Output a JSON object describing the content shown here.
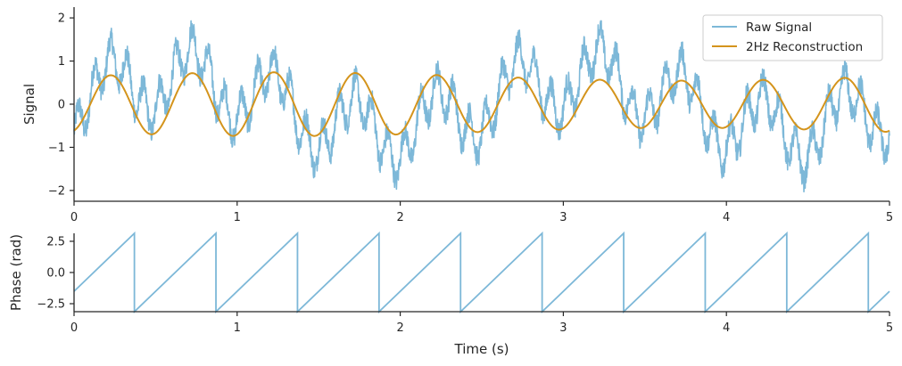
{
  "chart_data": [
    {
      "type": "line",
      "ylabel": "Signal",
      "xlabel": "",
      "xlim": [
        0,
        5
      ],
      "ylim": [
        -2.25,
        2.25
      ],
      "xticks": [
        "0",
        "1",
        "2",
        "3",
        "4",
        "5"
      ],
      "yticks": [
        "−2",
        "−1",
        "0",
        "1",
        "2"
      ],
      "grid": false,
      "legend_placement": "top-right",
      "series": [
        {
          "name": "Raw Signal",
          "color": "#7db8d8",
          "composition": {
            "components": [
              {
                "freq_hz": 2,
                "amplitude": 0.7,
                "phase_rad": -1.25
              },
              {
                "freq_hz": 10,
                "amplitude": 0.5,
                "phase_rad": 0
              },
              {
                "freq_hz": 0.4,
                "amplitude": 0.6,
                "phase_rad": 0
              }
            ],
            "noise_amplitude": 0.25
          }
        },
        {
          "name": "2Hz Reconstruction",
          "color": "#d4941c",
          "composition": {
            "components": [
              {
                "freq_hz": 2,
                "amplitude": 0.7,
                "phase_rad": -1.25
              }
            ],
            "amplitude_modulation": 0.15
          }
        }
      ]
    },
    {
      "type": "line",
      "ylabel": "Phase (rad)",
      "xlabel": "Time (s)",
      "xlim": [
        0,
        5
      ],
      "ylim": [
        -3.14,
        3.14
      ],
      "xticks": [
        "0",
        "1",
        "2",
        "3",
        "4",
        "5"
      ],
      "yticks": [
        "−2.5",
        "0.0",
        "2.5"
      ],
      "grid": false,
      "series": [
        {
          "color": "#7db8d8",
          "sawtooth": {
            "freq_hz": 2,
            "range": [
              -3.14,
              3.14
            ],
            "wrap_times": [
              0.37,
              0.87,
              1.37,
              1.87,
              2.37,
              2.87,
              3.37,
              3.87,
              4.37,
              4.87
            ]
          }
        }
      ]
    }
  ]
}
